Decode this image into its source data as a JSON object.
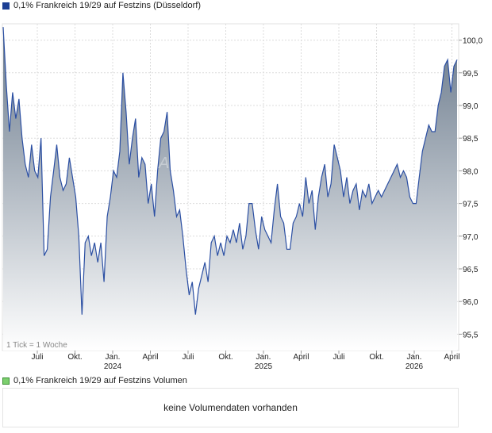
{
  "price_chart": {
    "legend": "0,1% Frankreich 19/29 auf Festzins (Düsseldorf)",
    "legend_color": "#1c3f94",
    "tick_info": "1 Tick = 1 Woche",
    "watermark": "AKTIEN CHECK",
    "line_color": "#2b4fa3",
    "fill_top_color": "#68788a",
    "fill_bottom_color": "#ffffff"
  },
  "volume_chart": {
    "legend": "0,1% Frankreich 19/29 auf Festzins Volumen",
    "legend_color": "#7ccf6e",
    "empty_message": "keine Volumendaten vorhanden"
  },
  "chart_data": {
    "type": "area",
    "title": "",
    "xlabel": "",
    "ylabel": "",
    "ylim": [
      95.25,
      100.25
    ],
    "y_ticks": [
      "100,0",
      "99,5",
      "99,0",
      "98,5",
      "98,0",
      "97,5",
      "97,0",
      "96,5",
      "96,0",
      "95,5"
    ],
    "x_ticks": [
      {
        "label": "Juli",
        "year": ""
      },
      {
        "label": "Okt.",
        "year": ""
      },
      {
        "label": "Jan.",
        "year": "2024"
      },
      {
        "label": "April",
        "year": ""
      },
      {
        "label": "Juli",
        "year": ""
      },
      {
        "label": "Okt.",
        "year": ""
      },
      {
        "label": "Jan.",
        "year": "2025"
      },
      {
        "label": "April",
        "year": ""
      },
      {
        "label": "Juli",
        "year": ""
      },
      {
        "label": "Okt.",
        "year": ""
      },
      {
        "label": "Jan.",
        "year": "2026"
      },
      {
        "label": "April",
        "year": ""
      }
    ],
    "grid": true,
    "series": [
      {
        "values": [
          100.2,
          99.3,
          98.6,
          99.2,
          98.8,
          99.1,
          98.5,
          98.1,
          97.9,
          98.4,
          98.0,
          97.9,
          98.5,
          96.7,
          96.8,
          97.6,
          98.0,
          98.4,
          97.9,
          97.7,
          97.8,
          98.2,
          97.9,
          97.6,
          97.0,
          95.8,
          96.9,
          97.0,
          96.7,
          96.9,
          96.6,
          96.9,
          96.3,
          97.3,
          97.6,
          98.0,
          97.9,
          98.3,
          99.5,
          98.9,
          98.1,
          98.5,
          98.8,
          97.9,
          98.2,
          98.1,
          97.5,
          97.8,
          97.3,
          98.0,
          98.5,
          98.6,
          98.9,
          98.0,
          97.7,
          97.3,
          97.4,
          97.0,
          96.5,
          96.1,
          96.3,
          95.8,
          96.2,
          96.4,
          96.6,
          96.3,
          96.9,
          97.0,
          96.7,
          96.9,
          96.7,
          97.0,
          96.9,
          97.1,
          96.9,
          97.2,
          96.8,
          97.0,
          97.5,
          97.5,
          97.1,
          96.8,
          97.3,
          97.1,
          97.0,
          96.9,
          97.4,
          97.8,
          97.3,
          97.2,
          96.8,
          96.8,
          97.2,
          97.3,
          97.5,
          97.3,
          97.9,
          97.5,
          97.7,
          97.1,
          97.6,
          97.9,
          98.1,
          97.6,
          97.8,
          98.4,
          98.2,
          98.0,
          97.6,
          97.9,
          97.5,
          97.7,
          97.8,
          97.4,
          97.7,
          97.6,
          97.8,
          97.5,
          97.6,
          97.7,
          97.6,
          97.7,
          97.8,
          97.9,
          98.0,
          98.1,
          97.9,
          98.0,
          97.9,
          97.6,
          97.5,
          97.5,
          97.9,
          98.3,
          98.5,
          98.7,
          98.6,
          98.6,
          99.0,
          99.2,
          99.6,
          99.7,
          99.2,
          99.6,
          99.7
        ]
      }
    ]
  }
}
